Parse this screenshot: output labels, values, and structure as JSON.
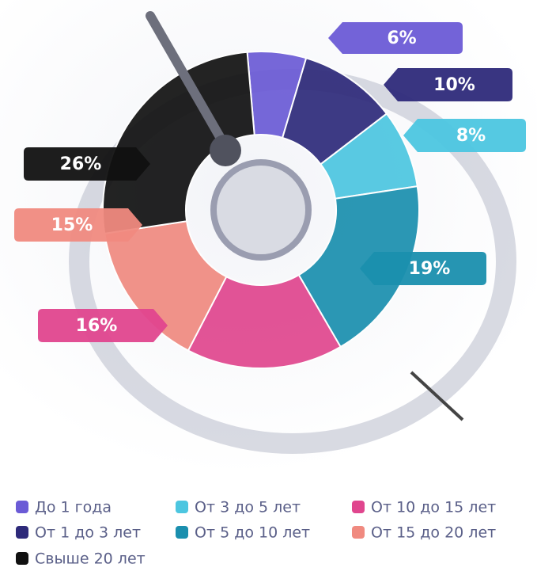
{
  "chart_data": {
    "type": "donut",
    "categories": [
      "До 1 года",
      "От 1 до 3 лет",
      "От 3 до 5 лет",
      "От 5 до 10 лет",
      "От 10 до 15 лет",
      "От 15 до 20 лет",
      "Свыше 20 лет"
    ],
    "values": [
      6,
      10,
      8,
      19,
      16,
      15,
      26
    ],
    "value_labels": [
      "6%",
      "10%",
      "8%",
      "19%",
      "16%",
      "15%",
      "26%"
    ],
    "colors": [
      "#6b5bd6",
      "#2e2a7a",
      "#4cc6e0",
      "#1a8fae",
      "#e0468e",
      "#f08a80",
      "#111111"
    ]
  }
}
